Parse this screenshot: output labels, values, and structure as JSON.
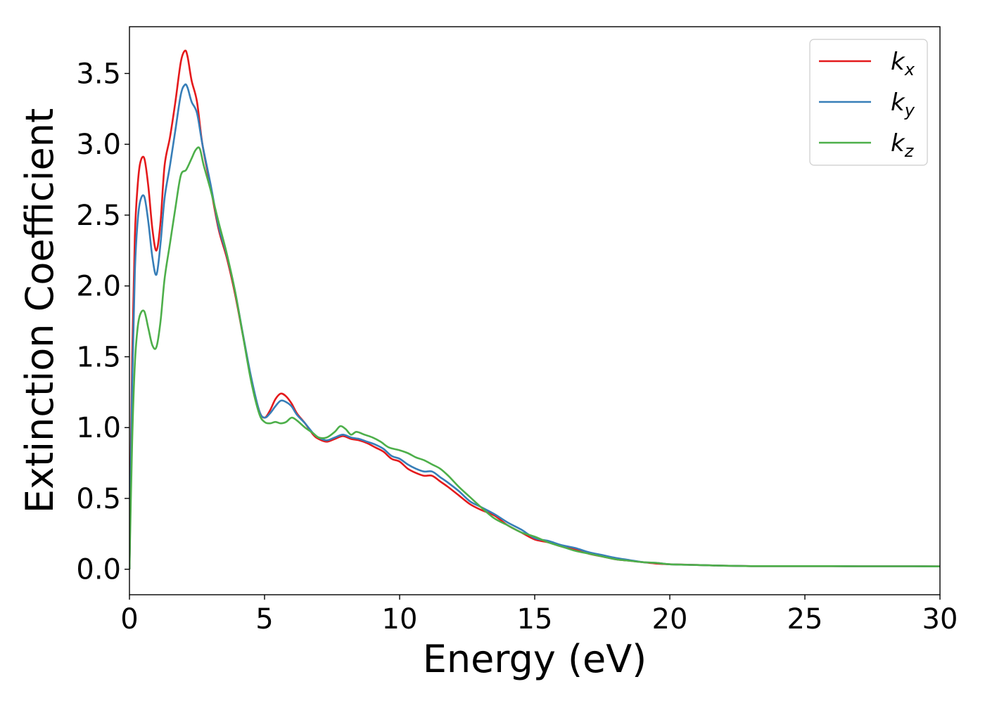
{
  "chart_data": {
    "type": "line",
    "xlabel": "Energy (eV)",
    "ylabel": "Extinction Coefficient",
    "xlim": [
      0,
      30
    ],
    "ylim": [
      -0.18,
      3.83
    ],
    "xticks": [
      "0",
      "5",
      "10",
      "15",
      "20",
      "25",
      "30"
    ],
    "yticks": [
      "0.0",
      "0.5",
      "1.0",
      "1.5",
      "2.0",
      "2.5",
      "3.0",
      "3.5"
    ],
    "grid": false,
    "legend_position": "top-right",
    "series": [
      {
        "name": "k",
        "sub": "x",
        "color": "#e41a1c",
        "x": [
          0,
          0.1,
          0.2,
          0.3,
          0.4,
          0.55,
          0.7,
          0.85,
          1.0,
          1.15,
          1.3,
          1.5,
          1.7,
          1.9,
          2.05,
          2.15,
          2.3,
          2.5,
          2.7,
          3.0,
          3.3,
          3.6,
          3.9,
          4.2,
          4.5,
          4.8,
          5.0,
          5.2,
          5.4,
          5.6,
          5.8,
          6.0,
          6.2,
          6.5,
          6.8,
          7.0,
          7.3,
          7.6,
          7.9,
          8.2,
          8.5,
          8.8,
          9.1,
          9.4,
          9.7,
          10.0,
          10.3,
          10.6,
          10.9,
          11.2,
          11.5,
          11.8,
          12.2,
          12.6,
          13.0,
          13.5,
          14.0,
          14.5,
          15.0,
          15.5,
          16.0,
          16.5,
          17.0,
          17.5,
          18.0,
          18.5,
          19.0,
          19.5,
          20.0,
          21.0,
          22.0,
          23.0,
          24.0,
          25.0,
          26.0,
          27.0,
          28.0,
          29.0,
          30.0
        ],
        "y": [
          0.0,
          1.5,
          2.35,
          2.7,
          2.87,
          2.9,
          2.7,
          2.4,
          2.25,
          2.45,
          2.85,
          3.05,
          3.3,
          3.58,
          3.66,
          3.62,
          3.45,
          3.3,
          3.0,
          2.7,
          2.4,
          2.2,
          1.95,
          1.65,
          1.35,
          1.12,
          1.07,
          1.12,
          1.2,
          1.24,
          1.22,
          1.17,
          1.1,
          1.03,
          0.95,
          0.92,
          0.9,
          0.92,
          0.94,
          0.92,
          0.91,
          0.89,
          0.86,
          0.83,
          0.78,
          0.76,
          0.71,
          0.68,
          0.66,
          0.66,
          0.62,
          0.58,
          0.52,
          0.46,
          0.42,
          0.38,
          0.31,
          0.26,
          0.21,
          0.19,
          0.16,
          0.14,
          0.11,
          0.09,
          0.07,
          0.06,
          0.05,
          0.04,
          0.035,
          0.03,
          0.025,
          0.022,
          0.022,
          0.022,
          0.022,
          0.021,
          0.021,
          0.021,
          0.02
        ]
      },
      {
        "name": "k",
        "sub": "y",
        "color": "#377eb8",
        "x": [
          0,
          0.1,
          0.2,
          0.3,
          0.4,
          0.55,
          0.7,
          0.85,
          1.0,
          1.15,
          1.3,
          1.5,
          1.7,
          1.9,
          2.05,
          2.15,
          2.3,
          2.5,
          2.7,
          3.0,
          3.3,
          3.6,
          3.9,
          4.2,
          4.5,
          4.8,
          5.0,
          5.2,
          5.4,
          5.6,
          5.8,
          6.0,
          6.2,
          6.5,
          6.8,
          7.0,
          7.3,
          7.6,
          7.9,
          8.2,
          8.5,
          8.8,
          9.1,
          9.4,
          9.7,
          10.0,
          10.3,
          10.6,
          10.9,
          11.2,
          11.5,
          11.8,
          12.2,
          12.6,
          13.0,
          13.5,
          14.0,
          14.5,
          15.0,
          15.5,
          16.0,
          16.5,
          17.0,
          17.5,
          18.0,
          18.5,
          19.0,
          19.5,
          20.0,
          21.0,
          22.0,
          23.0,
          24.0,
          25.0,
          26.0,
          27.0,
          28.0,
          29.0,
          30.0
        ],
        "y": [
          0.0,
          1.3,
          2.1,
          2.45,
          2.6,
          2.63,
          2.45,
          2.2,
          2.08,
          2.3,
          2.62,
          2.85,
          3.1,
          3.35,
          3.42,
          3.4,
          3.3,
          3.22,
          3.0,
          2.72,
          2.42,
          2.22,
          1.97,
          1.66,
          1.36,
          1.12,
          1.07,
          1.1,
          1.15,
          1.19,
          1.18,
          1.15,
          1.09,
          1.03,
          0.96,
          0.93,
          0.91,
          0.93,
          0.95,
          0.93,
          0.92,
          0.9,
          0.88,
          0.85,
          0.8,
          0.78,
          0.74,
          0.71,
          0.69,
          0.69,
          0.65,
          0.61,
          0.55,
          0.48,
          0.44,
          0.39,
          0.33,
          0.28,
          0.22,
          0.2,
          0.17,
          0.15,
          0.12,
          0.1,
          0.08,
          0.065,
          0.05,
          0.045,
          0.035,
          0.03,
          0.025,
          0.022,
          0.022,
          0.022,
          0.022,
          0.021,
          0.021,
          0.021,
          0.02
        ]
      },
      {
        "name": "k",
        "sub": "z",
        "color": "#4daf4a",
        "x": [
          0,
          0.1,
          0.2,
          0.3,
          0.4,
          0.55,
          0.7,
          0.85,
          1.0,
          1.15,
          1.3,
          1.5,
          1.7,
          1.9,
          2.1,
          2.3,
          2.45,
          2.6,
          2.75,
          3.0,
          3.3,
          3.6,
          3.9,
          4.2,
          4.5,
          4.8,
          5.0,
          5.2,
          5.4,
          5.6,
          5.8,
          6.0,
          6.2,
          6.5,
          6.8,
          7.0,
          7.3,
          7.6,
          7.8,
          8.0,
          8.2,
          8.4,
          8.7,
          9.0,
          9.3,
          9.6,
          10.0,
          10.3,
          10.6,
          10.9,
          11.2,
          11.5,
          11.8,
          12.2,
          12.6,
          13.0,
          13.5,
          14.0,
          14.5,
          15.0,
          15.5,
          16.0,
          16.5,
          17.0,
          17.5,
          18.0,
          18.5,
          19.0,
          19.5,
          20.0,
          21.0,
          22.0,
          23.0,
          24.0,
          25.0,
          26.0,
          27.0,
          28.0,
          29.0,
          30.0
        ],
        "y": [
          0.0,
          0.9,
          1.45,
          1.7,
          1.8,
          1.82,
          1.7,
          1.58,
          1.57,
          1.75,
          2.05,
          2.3,
          2.55,
          2.78,
          2.82,
          2.9,
          2.96,
          2.97,
          2.85,
          2.68,
          2.45,
          2.23,
          1.97,
          1.65,
          1.33,
          1.1,
          1.04,
          1.03,
          1.04,
          1.03,
          1.04,
          1.07,
          1.05,
          1.0,
          0.96,
          0.93,
          0.93,
          0.97,
          1.01,
          0.99,
          0.95,
          0.97,
          0.95,
          0.93,
          0.9,
          0.86,
          0.84,
          0.82,
          0.79,
          0.77,
          0.74,
          0.71,
          0.66,
          0.58,
          0.51,
          0.44,
          0.36,
          0.31,
          0.26,
          0.23,
          0.19,
          0.16,
          0.13,
          0.11,
          0.09,
          0.07,
          0.06,
          0.05,
          0.045,
          0.035,
          0.03,
          0.025,
          0.022,
          0.022,
          0.022,
          0.022,
          0.021,
          0.021,
          0.021,
          0.02
        ]
      }
    ]
  }
}
